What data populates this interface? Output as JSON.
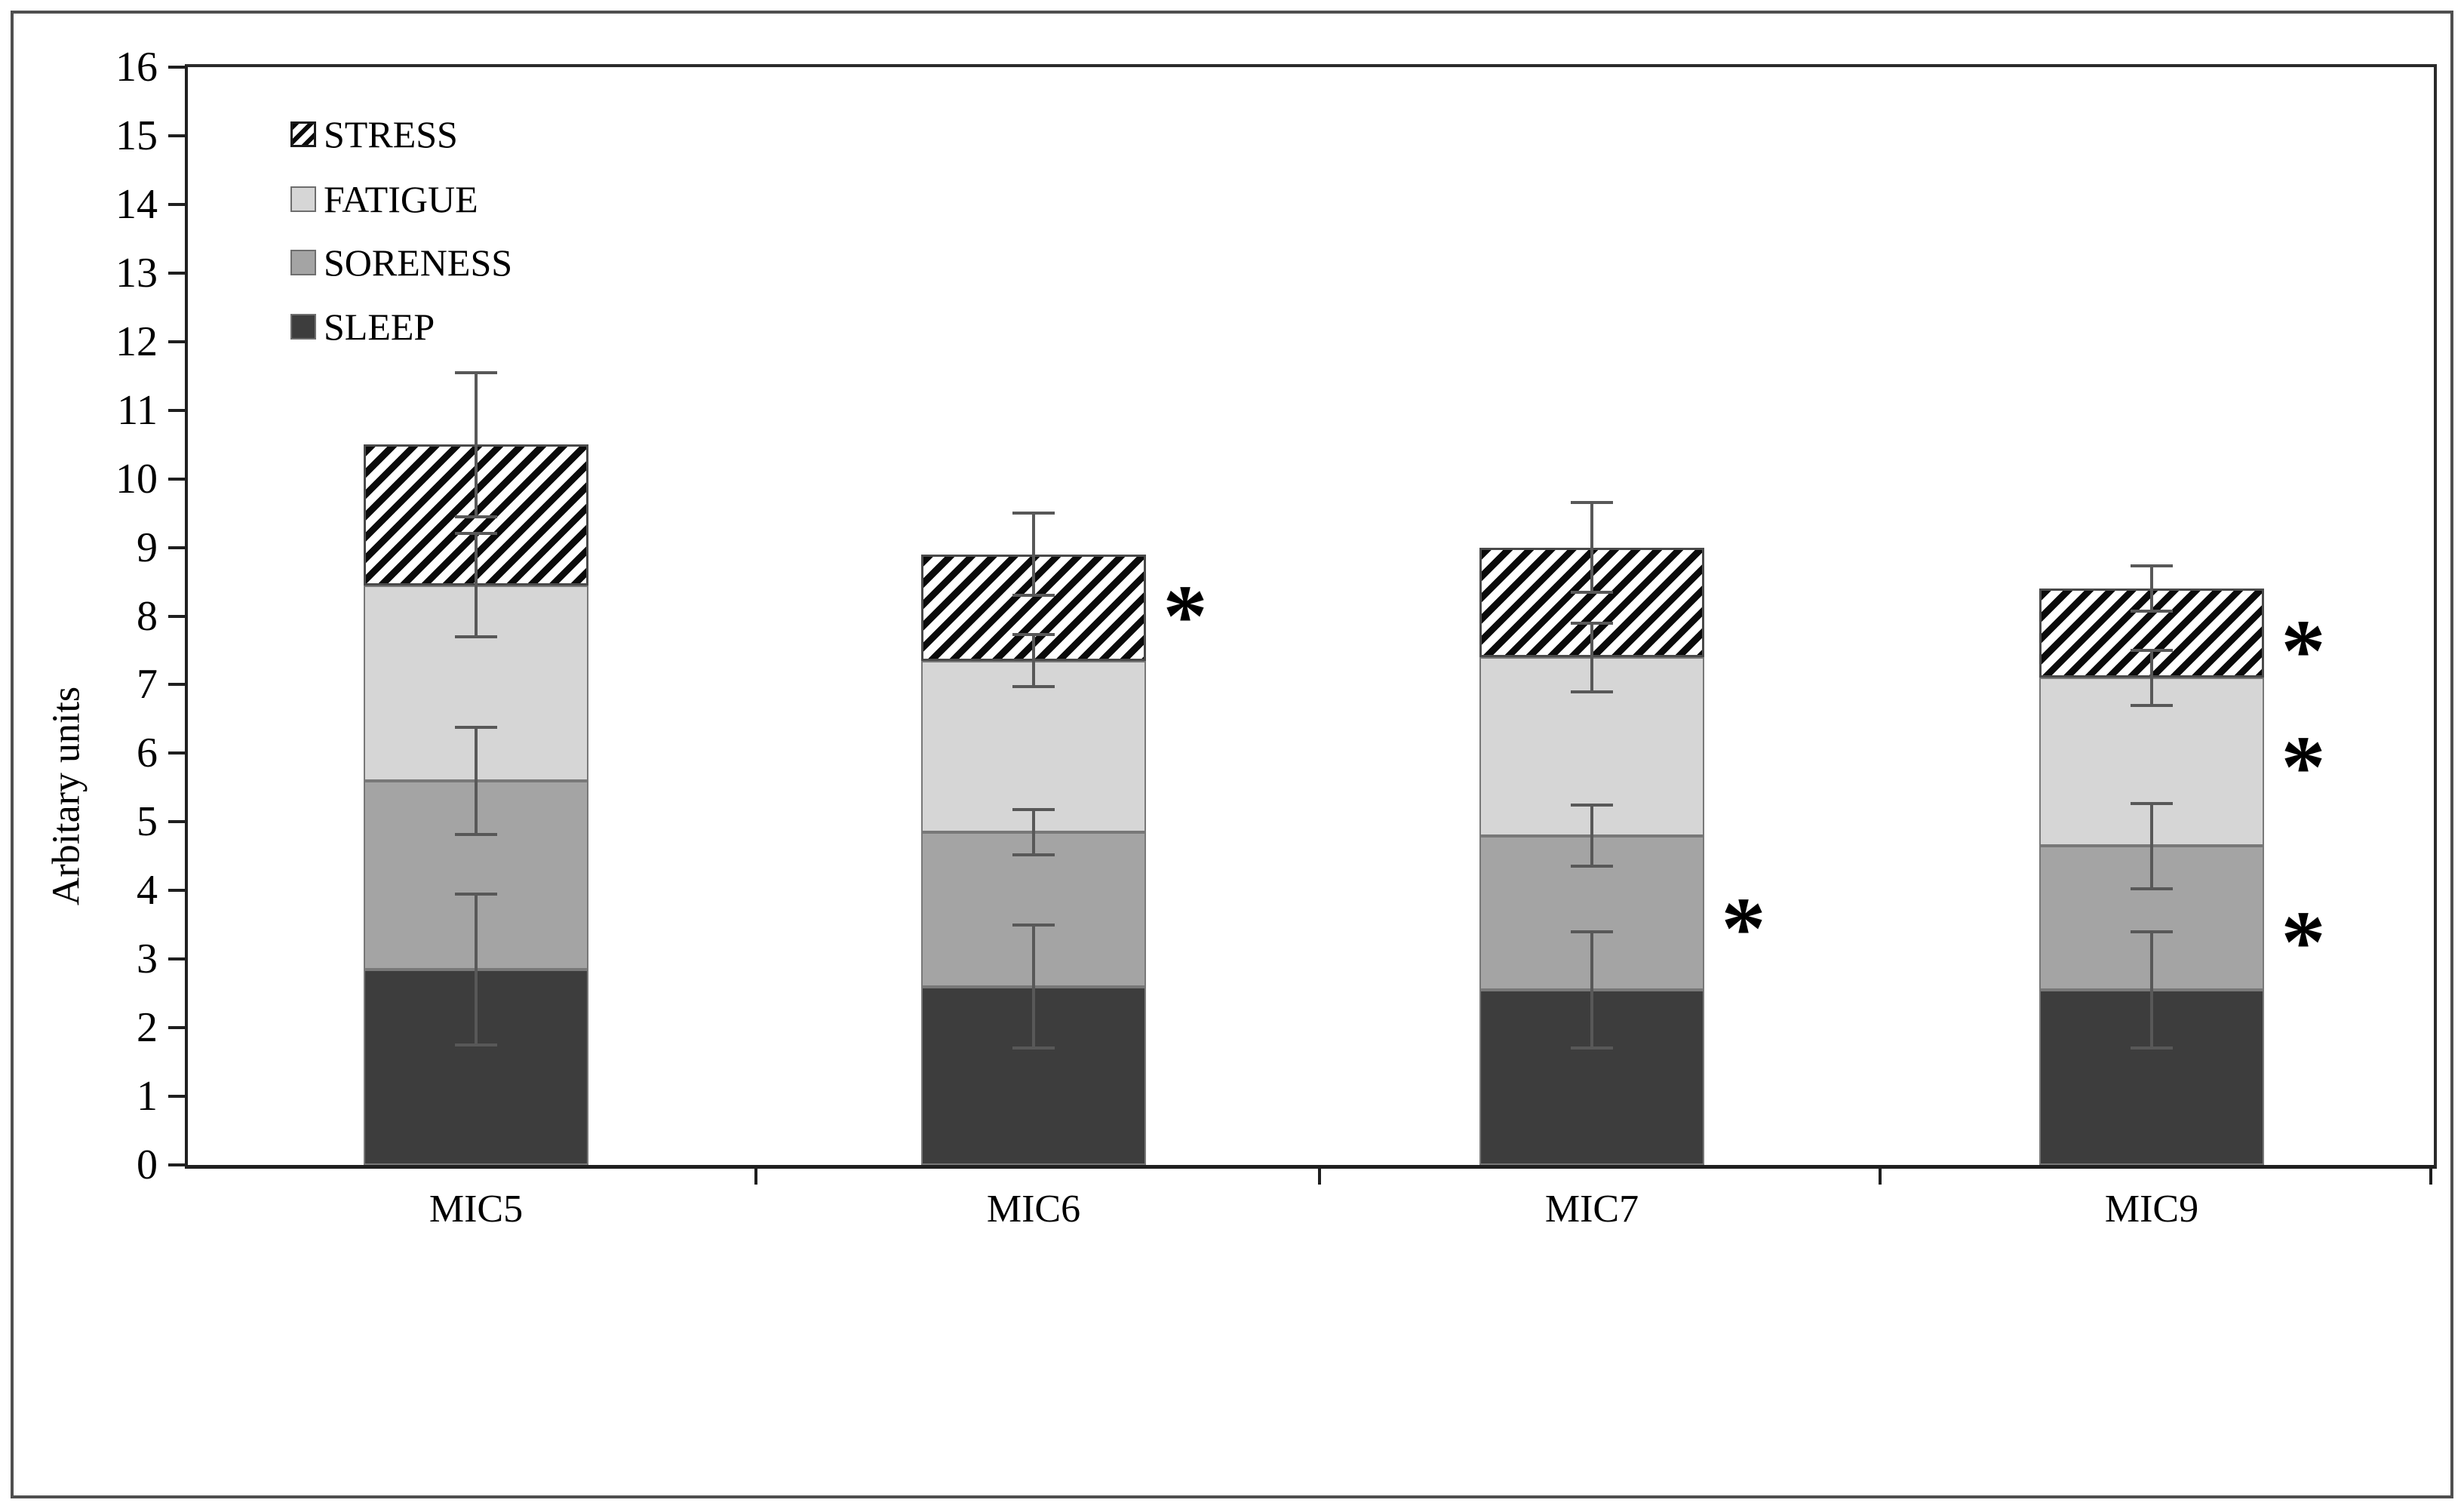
{
  "figure": {
    "background_color": "#ffffff",
    "border_color": "#4f4f4f",
    "legend_order": [
      "STRESS",
      "FATIGUE",
      "SORENESS",
      "SLEEP"
    ]
  },
  "chart_data": {
    "type": "bar",
    "stacked": true,
    "title": "",
    "xlabel": "",
    "ylabel": "Arbitary units",
    "ylim": [
      0,
      16
    ],
    "y_tick_step": 1,
    "y_tick_labels": [
      "0",
      "1",
      "2",
      "3",
      "4",
      "5",
      "6",
      "7",
      "8",
      "9",
      "10",
      "11",
      "12",
      "13",
      "14",
      "15",
      "16"
    ],
    "grid": false,
    "legend_position": "top-left",
    "categories": [
      "MIC5",
      "MIC6",
      "MIC7",
      "MIC9"
    ],
    "series": [
      {
        "name": "SLEEP",
        "color": "#3d3d3d",
        "pattern": "solid",
        "values": [
          2.85,
          2.6,
          2.55,
          2.55
        ],
        "error_at_boundary": [
          1.1,
          0.9,
          0.85,
          0.85
        ]
      },
      {
        "name": "SORENESS",
        "color": "#a4a4a4",
        "pattern": "solid",
        "values": [
          2.75,
          2.25,
          2.25,
          2.1
        ],
        "error_at_boundary": [
          0.78,
          0.33,
          0.45,
          0.62
        ]
      },
      {
        "name": "FATIGUE",
        "color": "#d6d6d6",
        "pattern": "solid",
        "values": [
          2.85,
          2.5,
          2.6,
          2.45
        ],
        "error_at_boundary": [
          0.75,
          0.38,
          0.5,
          0.4
        ]
      },
      {
        "name": "STRESS",
        "color": "#ffffff",
        "pattern": "diagonal-hatch",
        "values": [
          2.05,
          1.55,
          1.6,
          1.3
        ],
        "error_at_boundary": [
          1.05,
          0.6,
          0.65,
          0.33
        ]
      }
    ],
    "stack_totals": [
      10.5,
      8.9,
      9.0,
      8.4
    ],
    "significance_asterisks": [
      {
        "category": "MIC6",
        "at_value": 8.2,
        "symbol": "*"
      },
      {
        "category": "MIC7",
        "at_value": 3.65,
        "symbol": "*"
      },
      {
        "category": "MIC9",
        "at_value": 7.7,
        "symbol": "*"
      },
      {
        "category": "MIC9",
        "at_value": 6.0,
        "symbol": "*"
      },
      {
        "category": "MIC9",
        "at_value": 3.45,
        "symbol": "*"
      }
    ]
  }
}
